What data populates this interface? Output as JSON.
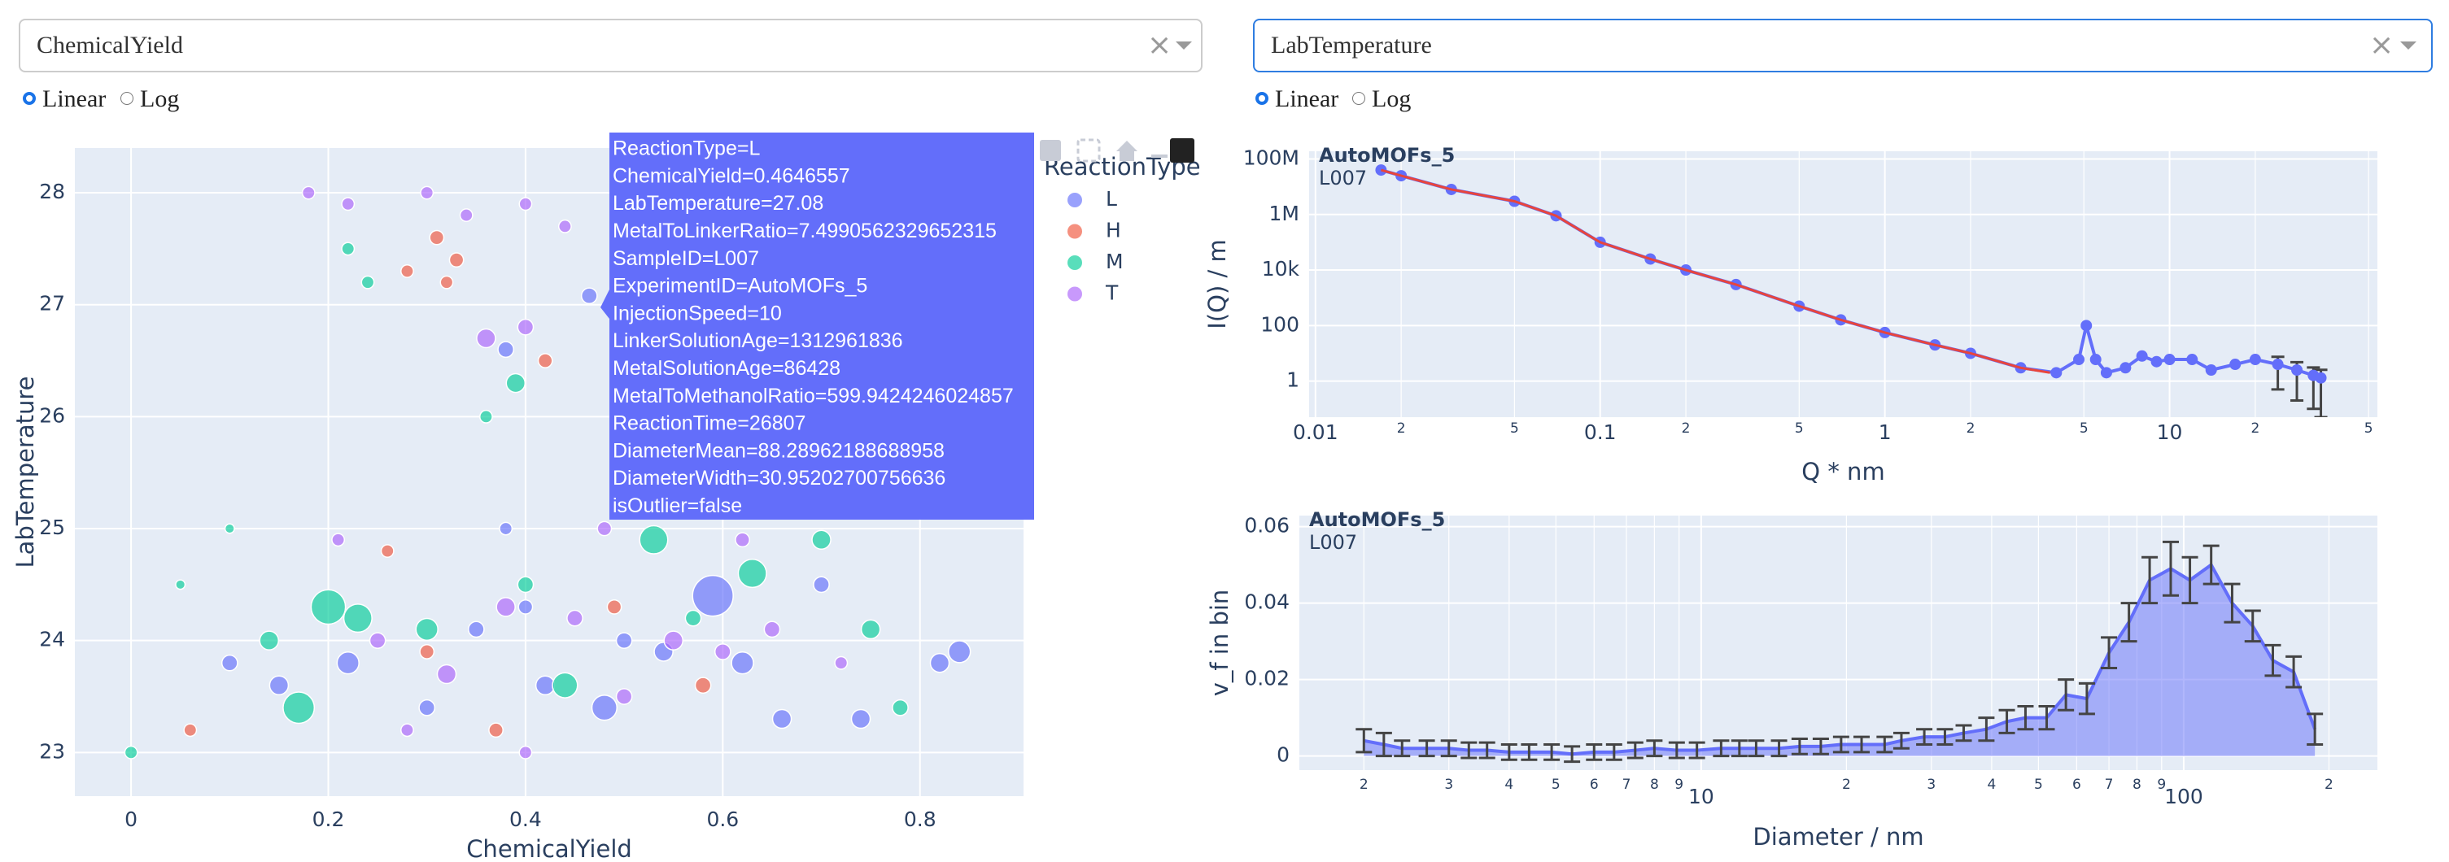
{
  "controls": {
    "left": {
      "dropdown": "ChemicalYield",
      "options": [
        "Linear",
        "Log"
      ],
      "selected": 0
    },
    "right": {
      "dropdown": "LabTemperature",
      "options": [
        "Linear",
        "Log"
      ],
      "selected": 0
    }
  },
  "tooltip": {
    "lines": [
      "ReactionType=L",
      "ChemicalYield=0.4646557",
      "LabTemperature=27.08",
      "MetalToLinkerRatio=7.4990562329652315",
      "SampleID=L007",
      "ExperimentID=AutoMOFs_5",
      "InjectionSpeed=10",
      "LinkerSolutionAge=1312961836",
      "MetalSolutionAge=86428",
      "MetalToMethanolRatio=599.9424246024857",
      "ReactionTime=26807",
      "DiameterMean=88.28962188688958",
      "DiameterWidth=30.95202700756636",
      "isOutlier=false"
    ]
  },
  "chart_data": [
    {
      "type": "scatter",
      "xlabel": "ChemicalYield",
      "ylabel": "LabTemperature",
      "legend_title": "ReactionType",
      "legend": "right",
      "grid": true,
      "xlim": [
        -0.057,
        0.905
      ],
      "ylim": [
        22.61,
        28.4
      ],
      "xticks": [
        0,
        0.2,
        0.4,
        0.6,
        0.8
      ],
      "yticks": [
        23,
        24,
        25,
        26,
        27,
        28
      ],
      "series": [
        {
          "name": "L",
          "color": "#636efa",
          "x": [
            0.22,
            0.35,
            0.42,
            0.48,
            0.54,
            0.59,
            0.62,
            0.66,
            0.74,
            0.82,
            0.84,
            0.1,
            0.15,
            0.38,
            0.4646557,
            0.38,
            0.3,
            0.4,
            0.5,
            0.7
          ],
          "values": [
            23.8,
            24.1,
            23.6,
            23.4,
            23.9,
            24.4,
            23.8,
            23.3,
            23.3,
            23.8,
            23.9,
            23.8,
            23.6,
            25.0,
            27.08,
            26.6,
            23.4,
            24.3,
            24.0,
            24.5
          ],
          "sizes": [
            14,
            10,
            12,
            16,
            12,
            26,
            14,
            12,
            12,
            12,
            14,
            10,
            12,
            8,
            10,
            10,
            10,
            9,
            10,
            10
          ]
        },
        {
          "name": "H",
          "color": "#ef553b",
          "x": [
            0.31,
            0.33,
            0.28,
            0.32,
            0.42,
            0.06,
            0.3,
            0.37,
            0.58,
            0.49,
            0.26
          ],
          "values": [
            27.6,
            27.4,
            27.3,
            27.2,
            26.5,
            23.2,
            23.9,
            23.2,
            23.6,
            24.3,
            24.8
          ],
          "sizes": [
            9,
            9,
            8,
            8,
            9,
            8,
            9,
            9,
            10,
            9,
            8
          ]
        },
        {
          "name": "M",
          "color": "#00cc96",
          "x": [
            0,
            0.2,
            0.23,
            0.17,
            0.14,
            0.53,
            0.63,
            0.7,
            0.75,
            0.78,
            0.4,
            0.36,
            0.39,
            0.22,
            0.24,
            0.44,
            0.3,
            0.57,
            0.05,
            0.1
          ],
          "values": [
            23,
            24.3,
            24.2,
            23.4,
            24,
            24.9,
            24.6,
            24.9,
            24.1,
            23.4,
            24.5,
            26,
            26.3,
            27.5,
            27.2,
            23.6,
            24.1,
            24.2,
            24.5,
            25
          ],
          "sizes": [
            8,
            22,
            18,
            20,
            12,
            18,
            18,
            12,
            12,
            10,
            10,
            8,
            12,
            8,
            8,
            16,
            14,
            10,
            6,
            6
          ]
        },
        {
          "name": "T",
          "color": "#ab63fa",
          "x": [
            0.18,
            0.22,
            0.3,
            0.34,
            0.4,
            0.44,
            0.36,
            0.4,
            0.21,
            0.25,
            0.32,
            0.38,
            0.45,
            0.5,
            0.55,
            0.6,
            0.65,
            0.72,
            0.28,
            0.4,
            0.48,
            0.62
          ],
          "values": [
            28,
            27.9,
            28,
            27.8,
            27.9,
            27.7,
            26.7,
            26.8,
            24.9,
            24,
            23.7,
            24.3,
            24.2,
            23.5,
            24,
            23.9,
            24.1,
            23.8,
            23.2,
            23,
            25,
            24.9
          ],
          "sizes": [
            8,
            8,
            8,
            8,
            8,
            8,
            12,
            10,
            8,
            10,
            12,
            12,
            10,
            10,
            12,
            10,
            10,
            8,
            8,
            8,
            9,
            9
          ]
        }
      ]
    },
    {
      "type": "line",
      "xlabel": "Q * nm",
      "ylabel": "I(Q) / m",
      "annotations": [
        "AutoMOFs_5",
        "L007"
      ],
      "log_x": true,
      "log_y": true,
      "grid": true,
      "xlim": [
        0.0095,
        53.7
      ],
      "ylim": [
        0.05,
        190000000
      ],
      "xticks": [
        0.01,
        {
          "value": 0.02,
          "label": "2"
        },
        {
          "value": 0.05,
          "label": "5"
        },
        0.1,
        {
          "value": 0.2,
          "label": "2"
        },
        {
          "value": 0.5,
          "label": "5"
        },
        1,
        2,
        5,
        10,
        {
          "value": 20,
          "label": "2"
        },
        {
          "value": 50,
          "label": "5"
        }
      ],
      "yticks": [
        {
          "value": 100000000,
          "label": "100M"
        },
        {
          "value": 1000000,
          "label": "1M"
        },
        {
          "value": 10000,
          "label": "10k"
        },
        100,
        1
      ],
      "series": [
        {
          "color": "#636efa",
          "mode": "lines+markers",
          "x": [
            0.017,
            0.02,
            0.03,
            0.05,
            0.07,
            0.1,
            0.15,
            0.2,
            0.3,
            0.5,
            0.7,
            1,
            1.5,
            2,
            3,
            4,
            4.8,
            5.1,
            5.5,
            6,
            7,
            8,
            9,
            10,
            12,
            14,
            17,
            20,
            24,
            28,
            32,
            34
          ],
          "values": [
            40000000,
            25000000,
            8000000,
            3000000,
            900000,
            100000,
            25000,
            10000,
            3000,
            500,
            160,
            56,
            20,
            10,
            3,
            2,
            6,
            100,
            6,
            2,
            3,
            8,
            5,
            6,
            6,
            2.5,
            4,
            6,
            4,
            2.5,
            1.6,
            1.3
          ],
          "errors": [
            null,
            null,
            null,
            null,
            null,
            null,
            null,
            null,
            null,
            null,
            null,
            null,
            null,
            null,
            null,
            null,
            null,
            null,
            null,
            null,
            null,
            null,
            null,
            null,
            null,
            null,
            null,
            null,
            3.5,
            2.3,
            1.5,
            1.25
          ]
        },
        {
          "color": "#e8453c",
          "mode": "lines",
          "x": [
            0.017,
            0.02,
            0.03,
            0.05,
            0.07,
            0.1,
            0.15,
            0.2,
            0.3,
            0.5,
            0.7,
            1,
            1.5,
            2,
            3,
            3.8
          ],
          "values": [
            40000000,
            25000000,
            8000000,
            3000000,
            900000,
            100000,
            25000,
            10000,
            3000,
            500,
            160,
            56,
            20,
            10,
            3,
            2
          ]
        }
      ]
    },
    {
      "type": "area",
      "xlabel": "Diameter / nm",
      "ylabel": "v_f in bin",
      "annotations": [
        "AutoMOFs_5",
        "L007"
      ],
      "log_x": true,
      "grid": true,
      "xlim": [
        1.47,
        252
      ],
      "ylim": [
        -0.0037,
        0.0629
      ],
      "xticks": [
        2,
        3,
        4,
        5,
        6,
        7,
        8,
        9,
        10,
        {
          "value": 20,
          "label": "2"
        },
        {
          "value": 30,
          "label": "3"
        },
        {
          "value": 40,
          "label": "4"
        },
        {
          "value": 50,
          "label": "5"
        },
        {
          "value": 60,
          "label": "6"
        },
        {
          "value": 70,
          "label": "7"
        },
        {
          "value": 80,
          "label": "8"
        },
        {
          "value": 90,
          "label": "9"
        },
        100,
        {
          "value": 200,
          "label": "2"
        }
      ],
      "yticks": [
        0,
        0.02,
        0.04,
        0.06
      ],
      "series": [
        {
          "color": "#636efa",
          "x": [
            2,
            2.2,
            2.4,
            2.7,
            3,
            3.3,
            3.6,
            4,
            4.4,
            4.9,
            5.4,
            6,
            6.6,
            7.3,
            8,
            8.9,
            9.8,
            11,
            12,
            13,
            14.5,
            16,
            17.7,
            19.5,
            21.5,
            24,
            26,
            29,
            32,
            35,
            39,
            43,
            47,
            52,
            57,
            63,
            70,
            77,
            85,
            94,
            103,
            114,
            126,
            139,
            153,
            169,
            187
          ],
          "values": [
            0.004,
            0.003,
            0.002,
            0.002,
            0.002,
            0.0015,
            0.0015,
            0.001,
            0.001,
            0.001,
            0.0005,
            0.001,
            0.001,
            0.0015,
            0.002,
            0.0015,
            0.0015,
            0.002,
            0.002,
            0.002,
            0.002,
            0.0025,
            0.0025,
            0.003,
            0.003,
            0.003,
            0.004,
            0.005,
            0.005,
            0.006,
            0.007,
            0.009,
            0.01,
            0.01,
            0.016,
            0.015,
            0.027,
            0.035,
            0.046,
            0.049,
            0.046,
            0.05,
            0.04,
            0.034,
            0.025,
            0.022,
            0.007
          ],
          "errors": [
            0.003,
            0.003,
            0.002,
            0.002,
            0.002,
            0.002,
            0.002,
            0.002,
            0.002,
            0.002,
            0.002,
            0.002,
            0.002,
            0.002,
            0.002,
            0.002,
            0.002,
            0.002,
            0.002,
            0.002,
            0.002,
            0.002,
            0.002,
            0.002,
            0.002,
            0.002,
            0.002,
            0.002,
            0.002,
            0.002,
            0.003,
            0.003,
            0.003,
            0.003,
            0.004,
            0.004,
            0.004,
            0.005,
            0.006,
            0.007,
            0.006,
            0.005,
            0.005,
            0.004,
            0.004,
            0.004,
            0.004
          ]
        }
      ]
    }
  ]
}
